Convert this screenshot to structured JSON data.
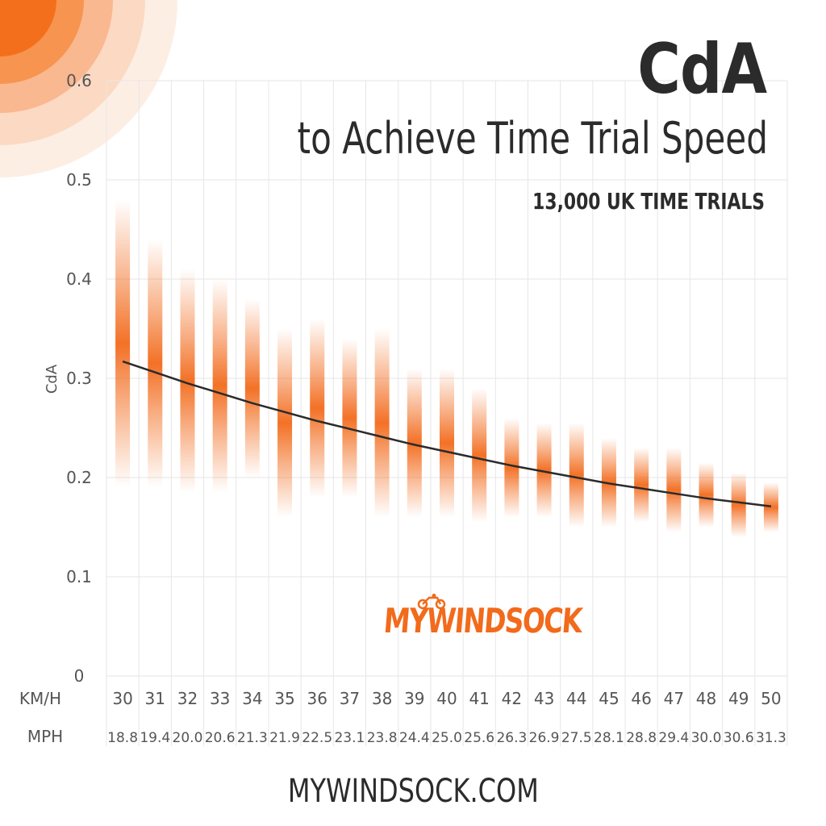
{
  "title": "CdA",
  "subtitle": "to Achieve Time Trial Speed",
  "tagline": "13,000 UK TIME TRIALS",
  "footer": "MYWINDSOCK.COM",
  "logo_text": "MYWINDSOCK",
  "colors": {
    "accent": "#f26a1b",
    "text": "#2b2b2b",
    "trend": "#2b2b2b",
    "grid": "#e6e6e6"
  },
  "chart_data": {
    "type": "scatter",
    "ylabel": "CdA",
    "row_labels": [
      "KM/H",
      "MPH"
    ],
    "ylim": [
      0,
      0.6
    ],
    "yticks": [
      "0",
      "0.1",
      "0.2",
      "0.3",
      "0.4",
      "0.5",
      "0.6"
    ],
    "grid": true,
    "x_kmh": [
      "30",
      "31",
      "32",
      "33",
      "34",
      "35",
      "36",
      "37",
      "38",
      "39",
      "40",
      "41",
      "42",
      "43",
      "44",
      "45",
      "46",
      "47",
      "48",
      "49",
      "50"
    ],
    "x_mph": [
      "18.8",
      "19.4",
      "20.0",
      "20.6",
      "21.3",
      "21.9",
      "22.5",
      "23.1",
      "23.8",
      "24.4",
      "25.0",
      "25.6",
      "26.3",
      "26.9",
      "27.5",
      "28.1",
      "28.8",
      "29.4",
      "30.0",
      "30.6",
      "31.3"
    ],
    "ranges": [
      [
        0.19,
        0.48
      ],
      [
        0.19,
        0.44
      ],
      [
        0.185,
        0.41
      ],
      [
        0.185,
        0.4
      ],
      [
        0.2,
        0.38
      ],
      [
        0.16,
        0.35
      ],
      [
        0.18,
        0.36
      ],
      [
        0.18,
        0.34
      ],
      [
        0.16,
        0.35
      ],
      [
        0.16,
        0.31
      ],
      [
        0.16,
        0.31
      ],
      [
        0.155,
        0.29
      ],
      [
        0.16,
        0.26
      ],
      [
        0.16,
        0.255
      ],
      [
        0.15,
        0.255
      ],
      [
        0.15,
        0.24
      ],
      [
        0.155,
        0.23
      ],
      [
        0.145,
        0.23
      ],
      [
        0.15,
        0.215
      ],
      [
        0.14,
        0.205
      ],
      [
        0.145,
        0.195
      ]
    ],
    "trend": [
      0.317,
      0.306,
      0.295,
      0.285,
      0.275,
      0.266,
      0.257,
      0.249,
      0.241,
      0.233,
      0.226,
      0.219,
      0.212,
      0.206,
      0.2,
      0.194,
      0.189,
      0.184,
      0.179,
      0.175,
      0.171
    ]
  }
}
